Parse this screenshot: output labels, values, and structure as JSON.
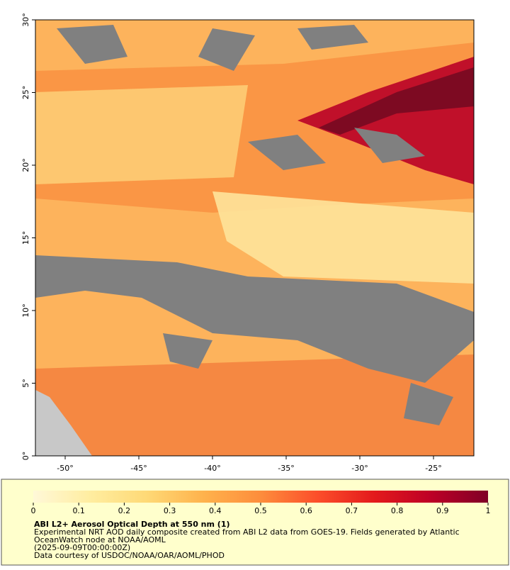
{
  "map": {
    "xlim": [
      -52.02,
      -22.26
    ],
    "ylim": [
      0,
      30
    ],
    "xticks": [
      {
        "value": -50,
        "label": "-50°"
      },
      {
        "value": -45,
        "label": "-45°"
      },
      {
        "value": -40,
        "label": "-40°"
      },
      {
        "value": -35,
        "label": "-35°"
      },
      {
        "value": -30,
        "label": "-30°"
      },
      {
        "value": -25,
        "label": "-25°"
      }
    ],
    "yticks": [
      {
        "value": 0,
        "label": "0°"
      },
      {
        "value": 5,
        "label": "5°"
      },
      {
        "value": 10,
        "label": "10°"
      },
      {
        "value": 15,
        "label": "15°"
      },
      {
        "value": 20,
        "label": "20°"
      },
      {
        "value": 25,
        "label": "25°"
      },
      {
        "value": 30,
        "label": "30°"
      }
    ]
  },
  "colorbar": {
    "range": [
      0,
      1
    ],
    "ticks": [
      0,
      0.1,
      0.2,
      0.3,
      0.4,
      0.5,
      0.6,
      0.7,
      0.8,
      0.9,
      1
    ],
    "colors": [
      "#fff8d8",
      "#ffeda0",
      "#fed976",
      "#feb24c",
      "#fd8d3c",
      "#fc4e2a",
      "#e31a1c",
      "#bd0026",
      "#800026"
    ]
  },
  "caption": {
    "title": "ABI L2+ Aerosol Optical Depth at 550 nm (1)",
    "lines": [
      "Experimental NRT AOD daily composite created from ABI L2 data from GOES-19. Fields generated by Atlantic",
      "OceanWatch node at NOAA/AOML",
      "(2025-09-09T00:00:00Z)",
      "Data courtesy of USDOC/NOAA/OAR/AOML/PHOD"
    ]
  }
}
